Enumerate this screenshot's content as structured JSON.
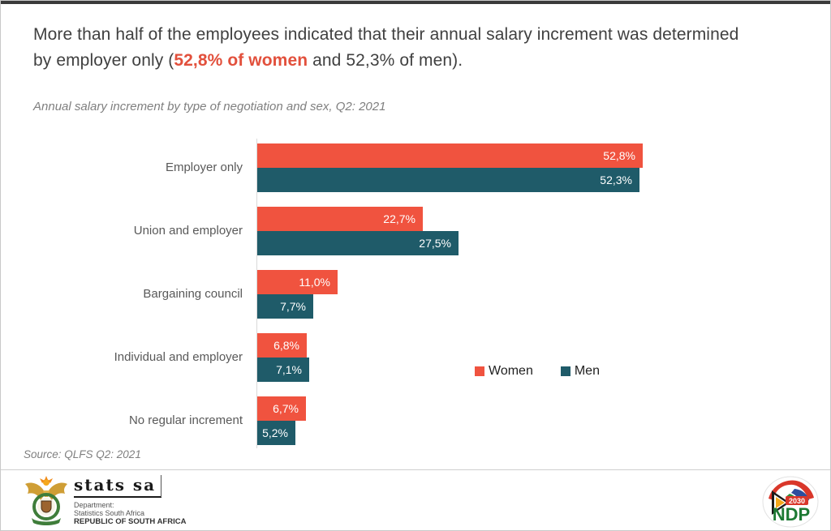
{
  "title": {
    "pre": "More than half of the employees indicated that their annual salary increment was determined by employer only (",
    "highlight": "52,8% of women",
    "post": " and 52,3% of men)."
  },
  "subtitle": "Annual salary increment by type of negotiation and sex, Q2: 2021",
  "source": "Source: QLFS Q2: 2021",
  "colors": {
    "women": "#F0533F",
    "men": "#1F5B69",
    "title_highlight": "#E2503C",
    "axis": "#d9d9d9"
  },
  "chart_data": {
    "type": "bar",
    "orientation": "horizontal",
    "title": "Annual salary increment by type of negotiation and sex, Q2: 2021",
    "categories": [
      "Employer only",
      "Union and employer",
      "Bargaining council",
      "Individual and employer",
      "No regular increment"
    ],
    "series": [
      {
        "name": "Women",
        "color": "#F0533F",
        "values": [
          52.8,
          22.7,
          11.0,
          6.8,
          6.7
        ],
        "labels": [
          "52,8%",
          "22,7%",
          "11,0%",
          "6,8%",
          "6,7%"
        ]
      },
      {
        "name": "Men",
        "color": "#1F5B69",
        "values": [
          52.3,
          27.5,
          7.7,
          7.1,
          5.2
        ],
        "labels": [
          "52,3%",
          "27,5%",
          "7,7%",
          "7,1%",
          "5,2%"
        ]
      }
    ],
    "xlim": [
      0,
      55
    ],
    "grid": false,
    "legend_position": "right-center",
    "value_labels": "inside-end, white"
  },
  "footer": {
    "statssa": {
      "wordmark": "stats sa",
      "dept_line1": "Department:",
      "dept_line2": "Statistics South Africa",
      "dept_line3": "REPUBLIC OF SOUTH AFRICA"
    },
    "ndp": {
      "label": "NDP",
      "year": "2030"
    }
  }
}
